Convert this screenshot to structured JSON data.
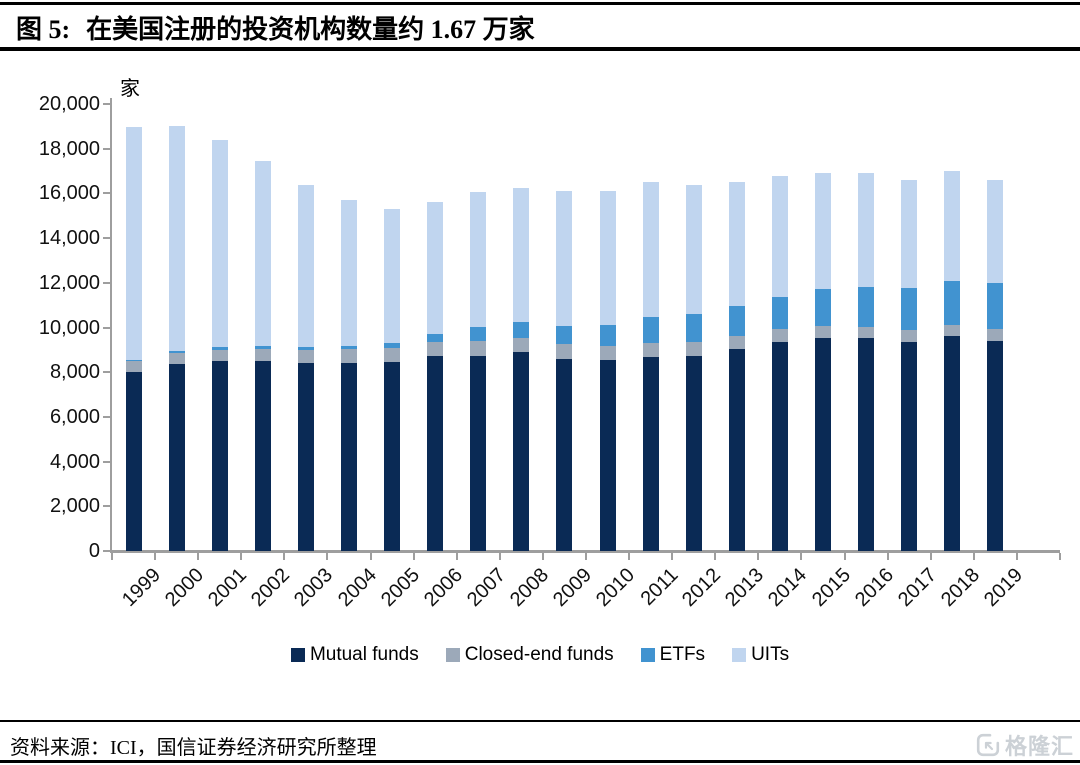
{
  "header": {
    "figure_label": "图 5:",
    "title": "在美国注册的投资机构数量约 1.67 万家"
  },
  "chart_data": {
    "type": "bar",
    "stacked": true,
    "title": "在美国注册的投资机构数量约 1.67 万家",
    "unit_label": "家",
    "xlabel": "",
    "ylabel": "家",
    "ylim": [
      0,
      20000
    ],
    "ytick_step": 2000,
    "yticks": [
      "0",
      "2,000",
      "4,000",
      "6,000",
      "8,000",
      "10,000",
      "12,000",
      "14,000",
      "16,000",
      "18,000",
      "20,000"
    ],
    "grid": false,
    "legend_position": "bottom",
    "categories": [
      "1999",
      "2000",
      "2001",
      "2002",
      "2003",
      "2004",
      "2005",
      "2006",
      "2007",
      "2008",
      "2009",
      "2010",
      "2011",
      "2012",
      "2013",
      "2014",
      "2015",
      "2016",
      "2017",
      "2018",
      "2019"
    ],
    "series": [
      {
        "name": "Mutual funds",
        "color": "#0a2a55",
        "values": [
          8004,
          8371,
          8518,
          8511,
          8426,
          8419,
          8449,
          8721,
          8747,
          8884,
          8613,
          8545,
          8673,
          8744,
          9027,
          9361,
          9517,
          9511,
          9356,
          9599,
          9414
        ]
      },
      {
        "name": "Closed-end funds",
        "color": "#9ca9b9",
        "values": [
          512,
          482,
          492,
          545,
          584,
          619,
          635,
          646,
          663,
          642,
          628,
          624,
          634,
          602,
          599,
          568,
          558,
          530,
          530,
          506,
          500
        ]
      },
      {
        "name": "ETFs",
        "color": "#4193d0",
        "values": [
          30,
          80,
          102,
          113,
          119,
          152,
          204,
          359,
          629,
          743,
          820,
          950,
          1166,
          1239,
          1332,
          1451,
          1644,
          1774,
          1900,
          1988,
          2096
        ]
      },
      {
        "name": "UITs",
        "color": "#c0d5ef",
        "values": [
          10414,
          10072,
          9295,
          8303,
          7233,
          6499,
          6019,
          5907,
          6030,
          5984,
          6049,
          5971,
          6022,
          5787,
          5552,
          5381,
          5188,
          5103,
          4803,
          4917,
          4571
        ]
      }
    ]
  },
  "footer": {
    "source": "资料来源：ICI，国信证券经济研究所整理",
    "logo_text": "格隆汇"
  },
  "colors": {
    "axis": "#9e9e9e",
    "rule": "#000000",
    "logo_gray": "#ccd1d6"
  }
}
